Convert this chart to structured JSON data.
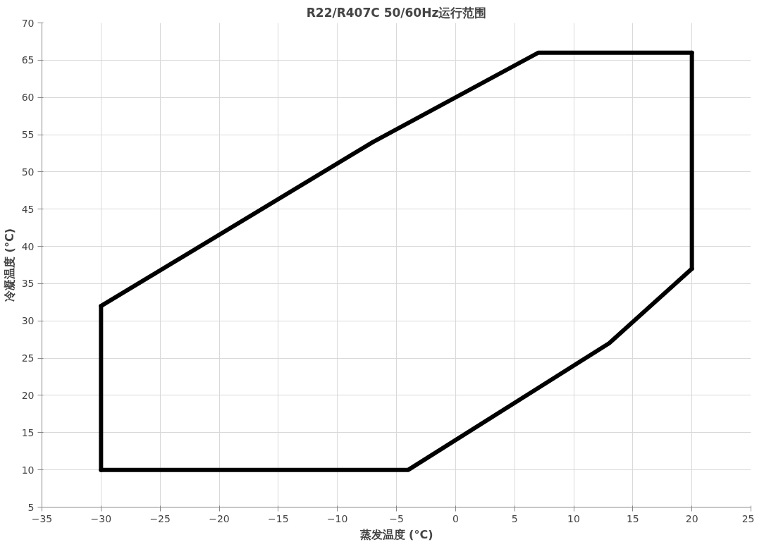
{
  "chart_data": {
    "type": "line",
    "title": "R22/R407C 50/60Hz运行范围",
    "xlabel": "蒸发温度 (°C)",
    "ylabel": "冷凝温度 (°C)",
    "series": [
      {
        "color": "#000000",
        "x": [
          -30,
          -7,
          7,
          20
        ],
        "values": [
          32,
          54,
          66,
          66
        ]
      },
      {
        "color": "#000000",
        "x": [
          -30,
          -4,
          13,
          20
        ],
        "values": [
          10,
          10,
          27,
          37
        ]
      },
      {
        "color": "#000000",
        "x": [
          -30,
          -30
        ],
        "values": [
          10,
          32
        ]
      },
      {
        "color": "#000000",
        "x": [
          20,
          20
        ],
        "values": [
          37,
          66
        ]
      }
    ],
    "xlim": [
      -35,
      25
    ],
    "xticks": [
      -35,
      -30,
      -25,
      -20,
      -15,
      -10,
      -5,
      0,
      5,
      10,
      15,
      20,
      25
    ],
    "ylim": [
      5,
      70
    ],
    "yticks": [
      5,
      10,
      15,
      20,
      25,
      30,
      35,
      40,
      45,
      50,
      55,
      60,
      65,
      70
    ],
    "grid": true,
    "marker": "none",
    "line_style": "solid"
  }
}
